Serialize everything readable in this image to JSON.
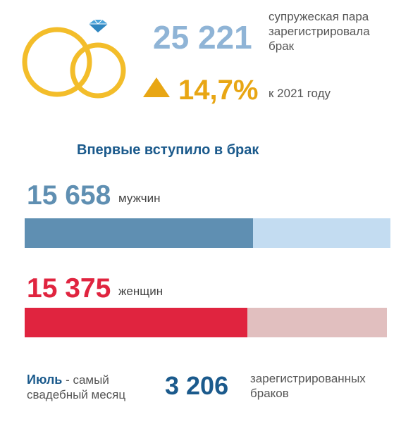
{
  "marriages": {
    "count": "25 221",
    "caption_line1": "супружеская пара",
    "caption_line2": "зарегистрировала",
    "caption_line3": "брак",
    "growth": "14,7%",
    "growth_caption": "к 2021 году",
    "growth_icon": "triangle-up-icon"
  },
  "first_marriage": {
    "title": "Впервые вступило в брак",
    "men": {
      "count": "15 658",
      "label": "мужчин",
      "share": 0.625,
      "color": "#5f8fb2",
      "track_color": "#c3dcf1"
    },
    "women": {
      "count": "15 375",
      "label": "женщин",
      "share": 0.614,
      "color": "#e0243f",
      "track_color": "#e1bfbf"
    }
  },
  "footer": {
    "month": "Июль",
    "month_caption": " - самый",
    "month_caption2": "свадебный месяц",
    "count": "3 206",
    "count_caption_line1": "зарегистрированных",
    "count_caption_line2": "браков"
  },
  "colors": {
    "ring": "#f3bd2a",
    "diamond": "#4ba3d9"
  }
}
